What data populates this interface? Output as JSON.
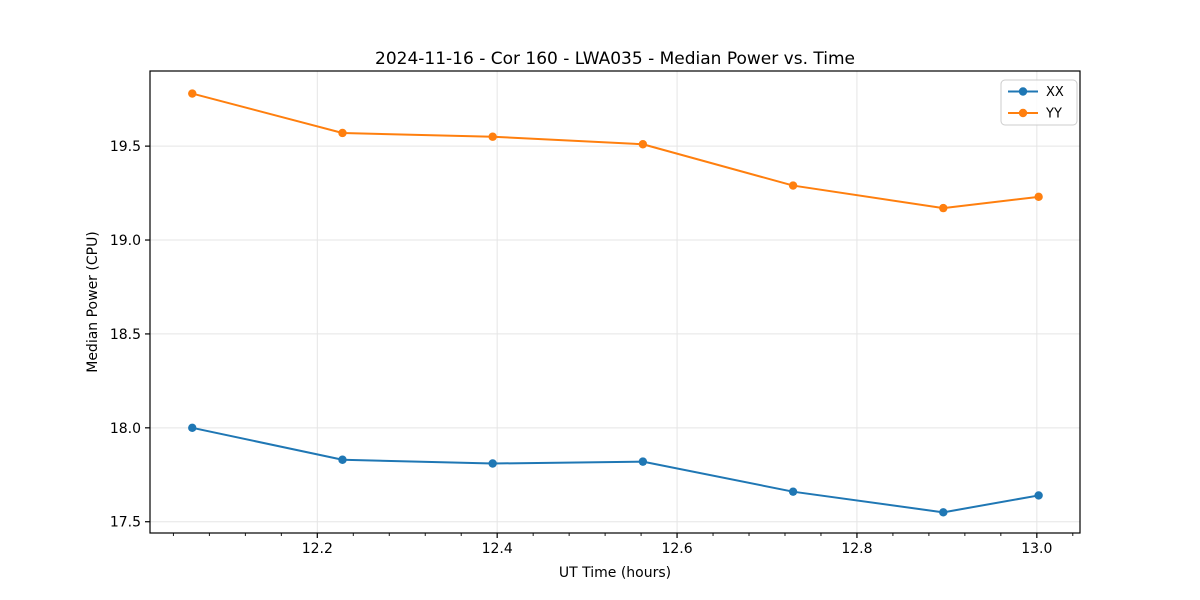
{
  "chart_data": {
    "type": "line",
    "title": "2024-11-16 - Cor 160 - LWA035 - Median Power vs. Time",
    "xlabel": "UT Time (hours)",
    "ylabel": "Median Power (CPU)",
    "x": [
      12.061,
      12.228,
      12.395,
      12.562,
      12.729,
      12.896,
      13.002
    ],
    "series": [
      {
        "name": "XX",
        "color": "#1f77b4",
        "values": [
          18.0,
          17.83,
          17.81,
          17.82,
          17.66,
          17.55,
          17.64
        ]
      },
      {
        "name": "YY",
        "color": "#ff7f0e",
        "values": [
          19.78,
          19.57,
          19.55,
          19.51,
          19.29,
          19.17,
          19.23
        ]
      }
    ],
    "xlim": [
      12.014,
      13.048
    ],
    "ylim": [
      17.44,
      19.9
    ],
    "xticks": [
      12.2,
      12.4,
      12.6,
      12.8,
      13.0
    ],
    "xtick_labels": [
      "12.2",
      "12.4",
      "12.6",
      "12.8",
      "13.0"
    ],
    "minor_xtick_step": 0.04,
    "yticks": [
      17.5,
      18.0,
      18.5,
      19.0,
      19.5
    ],
    "ytick_labels": [
      "17.5",
      "18.0",
      "18.5",
      "19.0",
      "19.5"
    ],
    "grid": true,
    "grid_color": "#e5e5e5",
    "axis_color": "#000000",
    "legend": {
      "position": "upper right",
      "entries": [
        "XX",
        "YY"
      ],
      "border_color": "#cccccc"
    }
  }
}
